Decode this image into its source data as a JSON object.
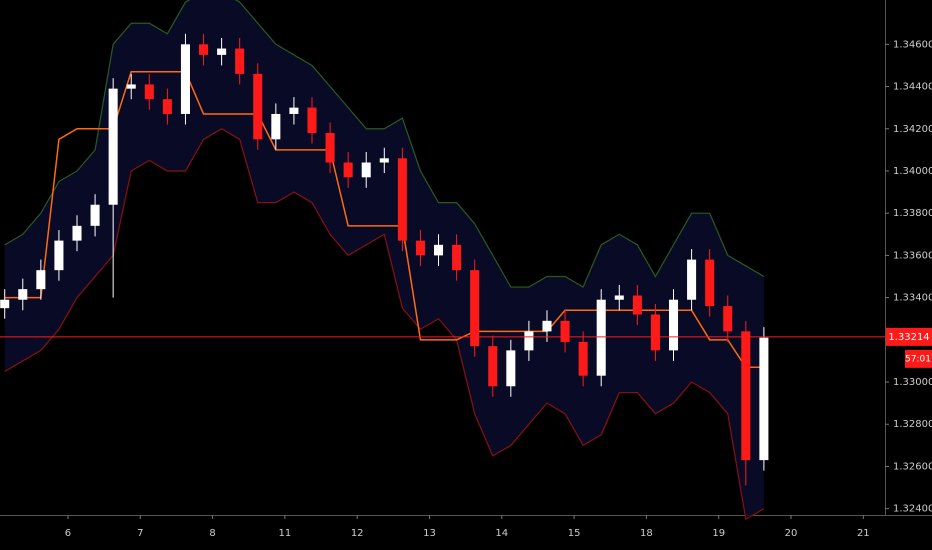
{
  "chart_data": {
    "type": "candlestick",
    "x": [
      -0.875,
      -0.625,
      -0.375,
      -0.125,
      0.125,
      0.375,
      0.625,
      0.875,
      1.125,
      1.375,
      1.625,
      1.875,
      2.125,
      2.375,
      2.625,
      2.875,
      3.125,
      3.375,
      3.625,
      3.875,
      4.125,
      4.375,
      4.625,
      4.875,
      5.125,
      5.375,
      5.625,
      5.875,
      6.125,
      6.375,
      6.625,
      6.875,
      7.125,
      7.375,
      7.625,
      7.875,
      8.125,
      8.375,
      8.625,
      8.875,
      9.125,
      9.375,
      9.625
    ],
    "open": [
      1.3335,
      1.3339,
      1.3344,
      1.3353,
      1.3367,
      1.3374,
      1.3384,
      1.3439,
      1.3441,
      1.3434,
      1.3427,
      1.346,
      1.3455,
      1.3458,
      1.3446,
      1.3415,
      1.3427,
      1.343,
      1.3418,
      1.3404,
      1.3397,
      1.3404,
      1.3406,
      1.3367,
      1.336,
      1.3365,
      1.3353,
      1.3317,
      1.3298,
      1.3315,
      1.3324,
      1.3329,
      1.3319,
      1.3303,
      1.3339,
      1.3341,
      1.3332,
      1.3315,
      1.3339,
      1.3358,
      1.3336,
      1.3324,
      1.3263
    ],
    "high": [
      1.3344,
      1.3349,
      1.3358,
      1.3372,
      1.3379,
      1.3389,
      1.3444,
      1.3446,
      1.3446,
      1.3439,
      1.3465,
      1.3465,
      1.3463,
      1.3463,
      1.3451,
      1.3432,
      1.3435,
      1.3435,
      1.3423,
      1.3409,
      1.3409,
      1.3411,
      1.3411,
      1.3372,
      1.337,
      1.337,
      1.3358,
      1.3322,
      1.332,
      1.3329,
      1.3334,
      1.3334,
      1.3324,
      1.3344,
      1.3346,
      1.3346,
      1.3337,
      1.3344,
      1.3363,
      1.3363,
      1.3341,
      1.3329,
      1.3326
    ],
    "low": [
      1.333,
      1.3334,
      1.3339,
      1.3348,
      1.3362,
      1.3369,
      1.334,
      1.3434,
      1.3429,
      1.3422,
      1.3422,
      1.345,
      1.345,
      1.3441,
      1.341,
      1.341,
      1.3422,
      1.3413,
      1.3399,
      1.3392,
      1.3392,
      1.3399,
      1.3362,
      1.3355,
      1.3355,
      1.3348,
      1.3312,
      1.3293,
      1.3293,
      1.331,
      1.3319,
      1.3314,
      1.3298,
      1.3298,
      1.3334,
      1.3327,
      1.331,
      1.331,
      1.3334,
      1.3331,
      1.3319,
      1.3251,
      1.3258
    ],
    "close": [
      1.3339,
      1.3344,
      1.3353,
      1.3367,
      1.3374,
      1.3384,
      1.3439,
      1.3441,
      1.3434,
      1.3427,
      1.346,
      1.3455,
      1.3458,
      1.3446,
      1.3415,
      1.3427,
      1.343,
      1.3418,
      1.3404,
      1.3397,
      1.3404,
      1.3406,
      1.3367,
      1.336,
      1.3365,
      1.3353,
      1.3317,
      1.3298,
      1.3315,
      1.3324,
      1.3329,
      1.3319,
      1.3303,
      1.3339,
      1.3341,
      1.3332,
      1.3315,
      1.3339,
      1.3358,
      1.3336,
      1.3324,
      1.3263,
      1.3321
    ],
    "up_color": "#ffffff",
    "down_color": "#ff1a1a",
    "bands": {
      "upper": [
        1.3365,
        1.337,
        1.338,
        1.3395,
        1.34,
        1.341,
        1.346,
        1.347,
        1.347,
        1.3465,
        1.348,
        1.3485,
        1.3485,
        1.348,
        1.347,
        1.346,
        1.3455,
        1.345,
        1.344,
        1.343,
        1.342,
        1.342,
        1.3425,
        1.34,
        1.3385,
        1.3385,
        1.3375,
        1.336,
        1.3345,
        1.3345,
        1.335,
        1.335,
        1.3345,
        1.3365,
        1.337,
        1.3365,
        1.335,
        1.3365,
        1.338,
        1.338,
        1.336,
        1.3355,
        1.335
      ],
      "basis": [
        1.334,
        1.334,
        1.334,
        1.3415,
        1.342,
        1.342,
        1.342,
        1.3447,
        1.3447,
        1.3447,
        1.3447,
        1.3427,
        1.3427,
        1.3427,
        1.3427,
        1.341,
        1.341,
        1.341,
        1.341,
        1.3374,
        1.3374,
        1.3374,
        1.3374,
        1.332,
        1.332,
        1.332,
        1.3324,
        1.3324,
        1.3324,
        1.3324,
        1.3324,
        1.3334,
        1.3334,
        1.3334,
        1.3334,
        1.3334,
        1.3334,
        1.3334,
        1.3334,
        1.332,
        1.332,
        1.3307,
        1.3307
      ],
      "lower": [
        1.3305,
        1.331,
        1.3315,
        1.3325,
        1.334,
        1.335,
        1.336,
        1.34,
        1.3405,
        1.34,
        1.34,
        1.3415,
        1.342,
        1.3415,
        1.3385,
        1.3385,
        1.339,
        1.3385,
        1.337,
        1.336,
        1.3365,
        1.337,
        1.3335,
        1.3325,
        1.333,
        1.332,
        1.3285,
        1.3265,
        1.327,
        1.328,
        1.329,
        1.3285,
        1.327,
        1.3275,
        1.3295,
        1.3295,
        1.3285,
        1.329,
        1.33,
        1.3295,
        1.3285,
        1.3235,
        1.324
      ],
      "upper_color": "#2a5a20",
      "basis_color": "#ff6a10",
      "lower_color": "#8a1010",
      "fill_color": "#0a0c2a"
    },
    "last_price": {
      "value": 1.33214,
      "label": "1.33214"
    },
    "countdown": "57:01",
    "xlim": [
      -0.94,
      11.3
    ],
    "xticks": [
      {
        "value": 0,
        "label": "6"
      },
      {
        "value": 1,
        "label": "7"
      },
      {
        "value": 2,
        "label": "8"
      },
      {
        "value": 3,
        "label": "11"
      },
      {
        "value": 4,
        "label": "12"
      },
      {
        "value": 5,
        "label": "13"
      },
      {
        "value": 6,
        "label": "14"
      },
      {
        "value": 7,
        "label": "15"
      },
      {
        "value": 8,
        "label": "18"
      },
      {
        "value": 9,
        "label": "19"
      },
      {
        "value": 10,
        "label": "20"
      },
      {
        "value": 11,
        "label": "21"
      }
    ],
    "ylim": [
      1.3237,
      1.3481
    ],
    "yticks": [
      {
        "value": 1.324,
        "label": "1.32400"
      },
      {
        "value": 1.326,
        "label": "1.32600"
      },
      {
        "value": 1.328,
        "label": "1.32800"
      },
      {
        "value": 1.33,
        "label": "1.33000"
      },
      {
        "value": 1.332,
        "label": "1.33200"
      },
      {
        "value": 1.334,
        "label": "1.33400"
      },
      {
        "value": 1.336,
        "label": "1.33600"
      },
      {
        "value": 1.338,
        "label": "1.33800"
      },
      {
        "value": 1.34,
        "label": "1.34000"
      },
      {
        "value": 1.342,
        "label": "1.34200"
      },
      {
        "value": 1.344,
        "label": "1.34400"
      },
      {
        "value": 1.346,
        "label": "1.34600"
      }
    ]
  }
}
